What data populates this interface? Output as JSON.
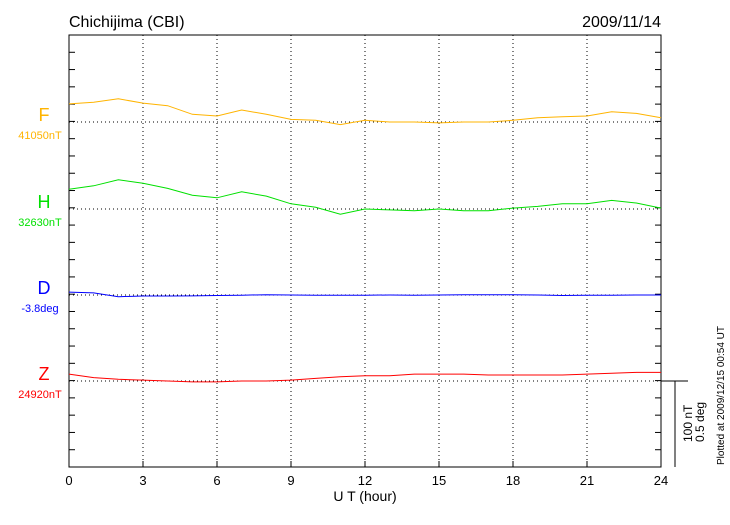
{
  "chart_data": {
    "type": "line",
    "title": "Chichijima (CBI)",
    "date": "2009/11/14",
    "xlabel": "U T (hour)",
    "xlim": [
      0,
      24
    ],
    "xticks": [
      0,
      3,
      6,
      9,
      12,
      15,
      18,
      21,
      24
    ],
    "grid": true,
    "scale_bar": {
      "nT": "100 nT",
      "deg": "0.5 deg",
      "nT_value": 100,
      "deg_value": 0.5
    },
    "footer": "Plotted at 2009/12/15 00:54 UT",
    "x": [
      0,
      1,
      2,
      3,
      4,
      5,
      6,
      7,
      8,
      9,
      10,
      11,
      12,
      13,
      14,
      15,
      16,
      17,
      18,
      19,
      20,
      21,
      22,
      23,
      24
    ],
    "series": [
      {
        "name": "F",
        "baseline_label": "41050nT",
        "baseline": 41050,
        "unit": "nT",
        "color": "#ffb400",
        "values": [
          41071,
          41073,
          41077,
          41072,
          41069,
          41059,
          41057,
          41064,
          41059,
          41053,
          41052,
          41047,
          41052,
          41050,
          41050,
          41049,
          41050,
          41050,
          41052,
          41055,
          41056,
          41057,
          41062,
          41060,
          41055
        ]
      },
      {
        "name": "H",
        "baseline_label": "32630nT",
        "baseline": 32630,
        "unit": "nT",
        "color": "#00e000",
        "values": [
          32653,
          32657,
          32664,
          32660,
          32654,
          32646,
          32643,
          32650,
          32645,
          32636,
          32632,
          32624,
          32630,
          32629,
          32628,
          32630,
          32628,
          32628,
          32631,
          32633,
          32636,
          32636,
          32640,
          32637,
          32631
        ]
      },
      {
        "name": "D",
        "baseline_label": "-3.8deg",
        "baseline": -3.8,
        "unit": "deg",
        "color": "#0000ff",
        "values": [
          -3.783,
          -3.788,
          -3.81,
          -3.806,
          -3.806,
          -3.805,
          -3.803,
          -3.801,
          -3.798,
          -3.8,
          -3.802,
          -3.802,
          -3.801,
          -3.8,
          -3.801,
          -3.8,
          -3.799,
          -3.798,
          -3.798,
          -3.8,
          -3.803,
          -3.802,
          -3.802,
          -3.8,
          -3.8
        ]
      },
      {
        "name": "Z",
        "baseline_label": "24920nT",
        "baseline": 24920,
        "unit": "nT",
        "color": "#ff0000",
        "values": [
          24928,
          24924,
          24922,
          24921,
          24920,
          24919,
          24919,
          24920,
          24920,
          24921,
          24923,
          24925,
          24926,
          24926,
          24928,
          24928,
          24928,
          24927,
          24927,
          24927,
          24927,
          24928,
          24929,
          24930,
          24930
        ]
      }
    ]
  }
}
